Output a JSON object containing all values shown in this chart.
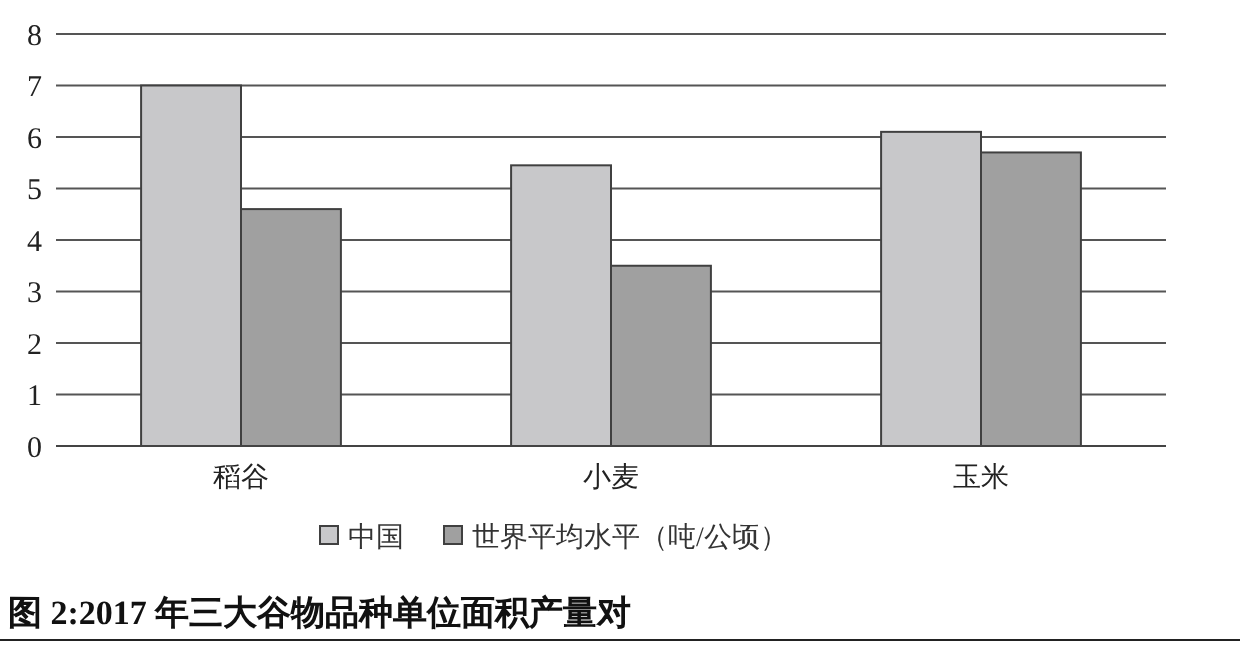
{
  "chart_data": {
    "type": "bar",
    "title": "图 2:2017 年三大谷物品种单位面积产量对",
    "categories": [
      "稻谷",
      "小麦",
      "玉米"
    ],
    "series": [
      {
        "name": "中国",
        "color": "#c8c8ca",
        "values": [
          7.0,
          5.45,
          6.1
        ]
      },
      {
        "name": "世界平均水平（吨/公顷）",
        "color": "#a0a0a0",
        "values": [
          4.6,
          3.5,
          5.7
        ]
      }
    ],
    "ylim": [
      0,
      8
    ],
    "yticks": [
      0,
      1,
      2,
      3,
      4,
      5,
      6,
      7,
      8
    ],
    "grid": "y",
    "legend": "bottom"
  }
}
